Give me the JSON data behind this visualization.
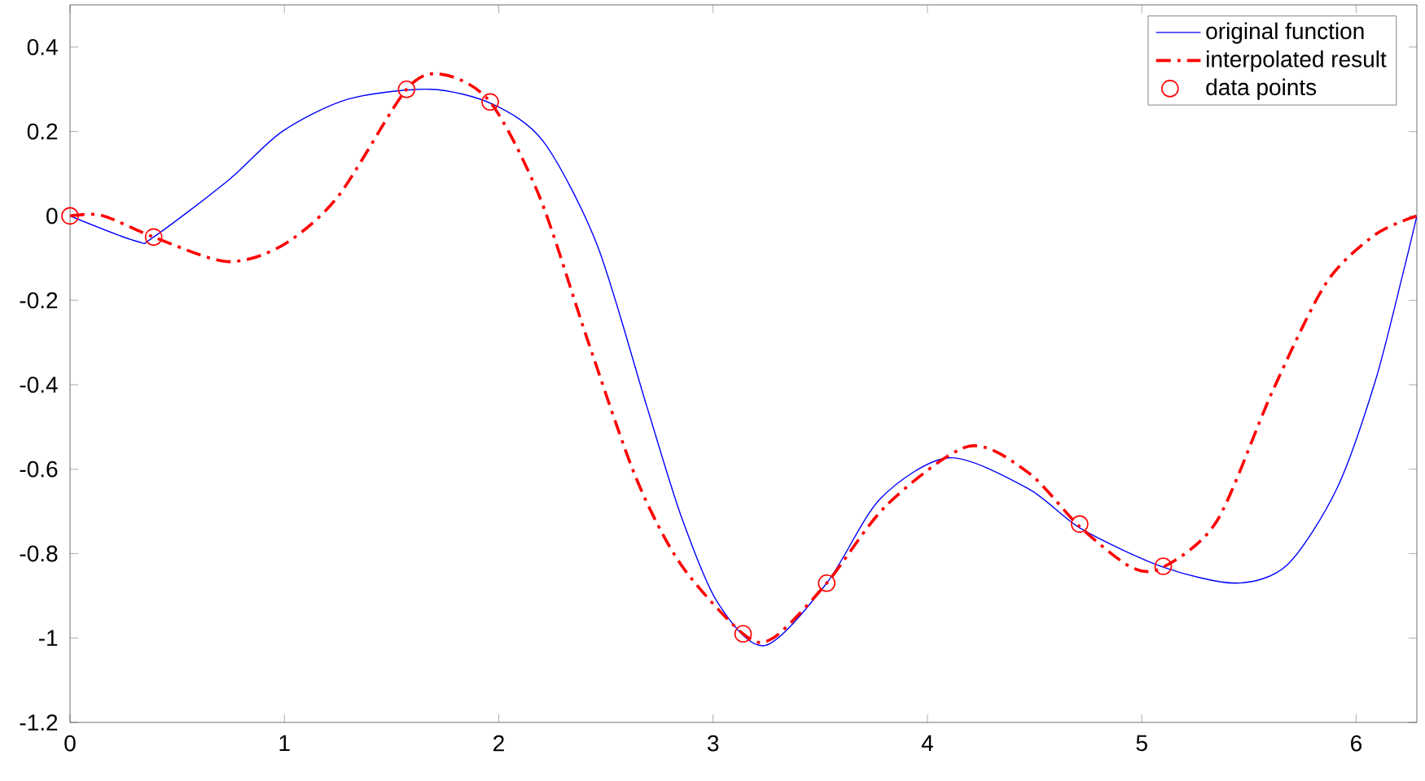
{
  "chart_data": {
    "type": "line",
    "xlim": [
      0,
      6.2832
    ],
    "ylim": [
      -1.2,
      0.5
    ],
    "xticks": [
      0,
      1,
      2,
      3,
      4,
      5,
      6
    ],
    "yticks": [
      -1.2,
      -1,
      -0.8,
      -0.6,
      -0.4,
      -0.2,
      0,
      0.2,
      0.4
    ],
    "grid": false,
    "legend": "top right",
    "series": [
      {
        "name": "original function",
        "color": "#0000ff",
        "line_style": "solid",
        "marker": "none",
        "x": [
          0,
          0.31,
          0.39,
          0.74,
          0.99,
          1.3,
          1.68,
          1.97,
          2.21,
          2.46,
          2.69,
          2.85,
          3.02,
          3.24,
          3.53,
          3.78,
          4.1,
          4.47,
          4.72,
          5.1,
          5.44,
          5.68,
          5.91,
          6.09,
          6.22,
          6.2832
        ],
        "values": [
          0,
          -0.06,
          -0.05,
          0.085,
          0.2,
          0.277,
          0.3,
          0.265,
          0.175,
          -0.07,
          -0.45,
          -0.71,
          -0.915,
          -1.018,
          -0.87,
          -0.67,
          -0.573,
          -0.646,
          -0.742,
          -0.832,
          -0.87,
          -0.826,
          -0.646,
          -0.39,
          -0.133,
          0
        ]
      },
      {
        "name": "interpolated result",
        "color": "#ff0000",
        "line_style": "dashdot",
        "marker": "none",
        "x": [
          0,
          0.15,
          0.39,
          0.73,
          0.99,
          1.25,
          1.57,
          1.74,
          1.96,
          2.19,
          2.41,
          2.64,
          2.85,
          3.14,
          3.28,
          3.53,
          3.81,
          4.19,
          4.47,
          4.71,
          4.95,
          5.1,
          5.35,
          5.61,
          5.86,
          6.09,
          6.2832
        ],
        "values": [
          0,
          0.001,
          -0.05,
          -0.108,
          -0.07,
          0.046,
          0.3,
          0.335,
          0.27,
          0.046,
          -0.287,
          -0.62,
          -0.826,
          -0.99,
          -1.0,
          -0.87,
          -0.685,
          -0.546,
          -0.608,
          -0.736,
          -0.832,
          -0.832,
          -0.723,
          -0.415,
          -0.159,
          -0.044,
          0
        ]
      },
      {
        "name": "data points",
        "type": "scatter",
        "color": "#ff0000",
        "marker": "circle",
        "x": [
          0,
          0.39,
          1.57,
          1.96,
          3.14,
          3.53,
          4.71,
          5.1
        ],
        "values": [
          0,
          -0.05,
          0.3,
          0.27,
          -0.99,
          -0.87,
          -0.73,
          -0.83
        ]
      }
    ]
  }
}
